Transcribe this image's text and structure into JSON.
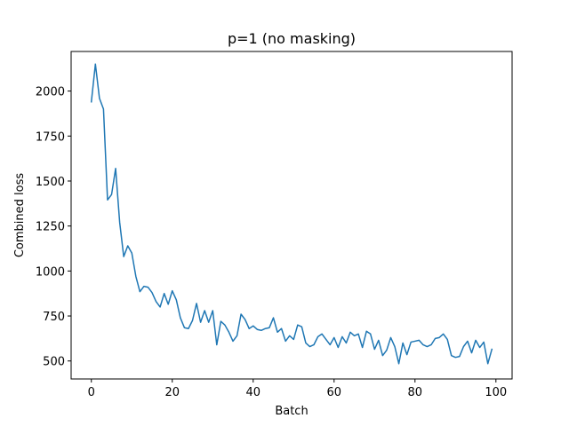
{
  "chart_data": {
    "type": "line",
    "title": "p=1 (no masking)",
    "xlabel": "Batch",
    "ylabel": "Combined loss",
    "xlim": [
      -5,
      104
    ],
    "ylim": [
      400,
      2220
    ],
    "xticks": [
      0,
      20,
      40,
      60,
      80,
      100
    ],
    "yticks": [
      500,
      750,
      1000,
      1250,
      1500,
      1750,
      2000
    ],
    "grid": false,
    "series": [
      {
        "color": "#1f77b4",
        "x": [
          0,
          1,
          2,
          3,
          4,
          5,
          6,
          7,
          8,
          9,
          10,
          11,
          12,
          13,
          14,
          15,
          16,
          17,
          18,
          19,
          20,
          21,
          22,
          23,
          24,
          25,
          26,
          27,
          28,
          29,
          30,
          31,
          32,
          33,
          34,
          35,
          36,
          37,
          38,
          39,
          40,
          41,
          42,
          43,
          44,
          45,
          46,
          47,
          48,
          49,
          50,
          51,
          52,
          53,
          54,
          55,
          56,
          57,
          58,
          59,
          60,
          61,
          62,
          63,
          64,
          65,
          66,
          67,
          68,
          69,
          70,
          71,
          72,
          73,
          74,
          75,
          76,
          77,
          78,
          79,
          80,
          81,
          82,
          83,
          84,
          85,
          86,
          87,
          88,
          89,
          90,
          91,
          92,
          93,
          94,
          95,
          96,
          97,
          98,
          99
        ],
        "values": [
          1940,
          2150,
          1960,
          1900,
          1395,
          1425,
          1570,
          1270,
          1080,
          1140,
          1100,
          970,
          885,
          915,
          910,
          880,
          830,
          800,
          875,
          815,
          890,
          840,
          740,
          685,
          680,
          725,
          820,
          715,
          780,
          715,
          780,
          590,
          720,
          700,
          660,
          610,
          640,
          760,
          730,
          680,
          695,
          675,
          670,
          680,
          685,
          740,
          660,
          680,
          610,
          640,
          620,
          700,
          690,
          600,
          580,
          590,
          635,
          650,
          620,
          590,
          630,
          575,
          635,
          600,
          660,
          640,
          650,
          575,
          665,
          650,
          565,
          615,
          530,
          560,
          630,
          580,
          485,
          600,
          535,
          605,
          610,
          615,
          590,
          580,
          590,
          625,
          630,
          650,
          620,
          530,
          520,
          525,
          580,
          610,
          545,
          615,
          575,
          605,
          485,
          565
        ]
      }
    ]
  }
}
